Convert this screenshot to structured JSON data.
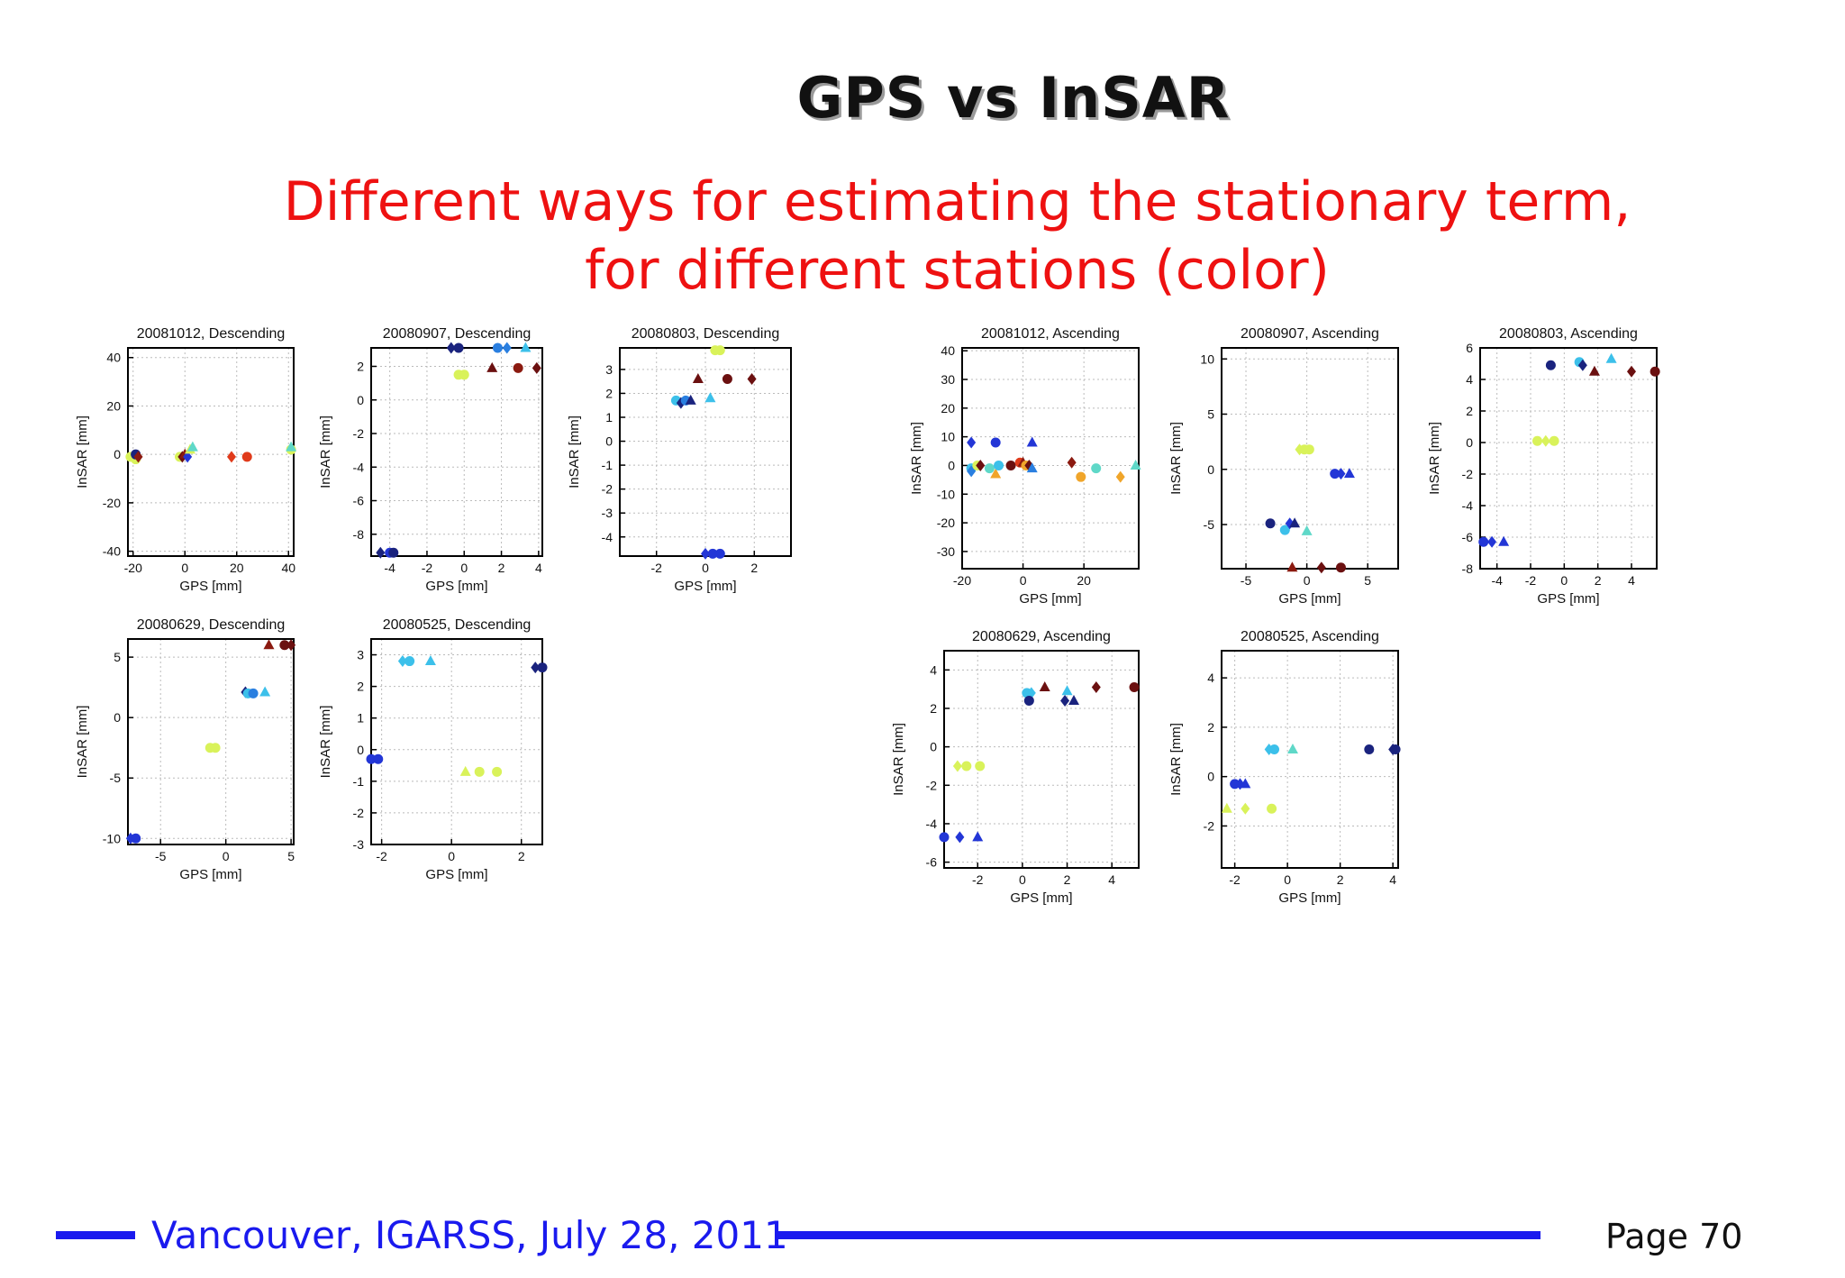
{
  "slide": {
    "title": "GPS vs InSAR",
    "subtitle_line1": "Different ways for estimating the stationary term,",
    "subtitle_line2": "for different stations (color)"
  },
  "footer": {
    "text": "Vancouver, IGARSS, July 28, 2011",
    "page": "Page 70",
    "line_color": "#1a1aee"
  },
  "colors": {
    "title": "#111111",
    "subtitle": "#ee1111",
    "stations": [
      "#1a237e",
      "#2336d6",
      "#2a7fe0",
      "#3cc0ea",
      "#5fd8c8",
      "#d9f25a",
      "#f0a52a",
      "#e03a1a",
      "#8b1a10",
      "#6b1010"
    ]
  },
  "chart_data": [
    {
      "type": "scatter",
      "title": "20081012, Descending",
      "xlabel": "GPS [mm]",
      "ylabel": "InSAR [mm]",
      "xlim": [
        -22,
        42
      ],
      "ylim": [
        -42,
        44
      ],
      "xticks": [
        -20,
        0,
        20,
        40
      ],
      "yticks": [
        -40,
        -20,
        0,
        20,
        40
      ],
      "grid": true,
      "points": [
        {
          "x": -21,
          "y": -1,
          "c": 5,
          "m": "circle"
        },
        {
          "x": -19,
          "y": -2,
          "c": 5,
          "m": "circle"
        },
        {
          "x": -19,
          "y": 0,
          "c": 0,
          "m": "circle"
        },
        {
          "x": -18,
          "y": -1,
          "c": 8,
          "m": "diamond"
        },
        {
          "x": -2,
          "y": -1,
          "c": 5,
          "m": "circle"
        },
        {
          "x": -1,
          "y": -1,
          "c": 9,
          "m": "diamond"
        },
        {
          "x": 0,
          "y": 0,
          "c": 8,
          "m": "triangle"
        },
        {
          "x": 1,
          "y": -1,
          "c": 1,
          "m": "diamond"
        },
        {
          "x": 2,
          "y": 2,
          "c": 5,
          "m": "triangle"
        },
        {
          "x": 3,
          "y": 3,
          "c": 4,
          "m": "triangle"
        },
        {
          "x": 18,
          "y": -1,
          "c": 7,
          "m": "diamond"
        },
        {
          "x": 24,
          "y": -1,
          "c": 7,
          "m": "circle"
        },
        {
          "x": 41,
          "y": 2,
          "c": 5,
          "m": "circle"
        },
        {
          "x": 41,
          "y": 3,
          "c": 4,
          "m": "triangle"
        }
      ]
    },
    {
      "type": "scatter",
      "title": "20080907, Descending",
      "xlabel": "GPS [mm]",
      "ylabel": "InSAR [mm]",
      "xlim": [
        -5,
        4.2
      ],
      "ylim": [
        -9.3,
        3.1
      ],
      "xticks": [
        -4,
        -2,
        0,
        2,
        4
      ],
      "yticks": [
        -8,
        -6,
        -4,
        -2,
        0,
        2
      ],
      "grid": true,
      "points": [
        {
          "x": -4.5,
          "y": -9.1,
          "c": 0,
          "m": "diamond"
        },
        {
          "x": -4.0,
          "y": -9.1,
          "c": 1,
          "m": "circle"
        },
        {
          "x": -3.8,
          "y": -9.1,
          "c": 0,
          "m": "circle"
        },
        {
          "x": -0.7,
          "y": 3.1,
          "c": 0,
          "m": "diamond"
        },
        {
          "x": -0.3,
          "y": 3.1,
          "c": 0,
          "m": "circle"
        },
        {
          "x": 1.8,
          "y": 3.1,
          "c": 2,
          "m": "circle"
        },
        {
          "x": 2.3,
          "y": 3.1,
          "c": 2,
          "m": "diamond"
        },
        {
          "x": 3.3,
          "y": 3.1,
          "c": 3,
          "m": "triangle"
        },
        {
          "x": -0.3,
          "y": 1.5,
          "c": 5,
          "m": "circle"
        },
        {
          "x": 0,
          "y": 1.5,
          "c": 5,
          "m": "circle"
        },
        {
          "x": 1.5,
          "y": 1.9,
          "c": 9,
          "m": "triangle"
        },
        {
          "x": 2.9,
          "y": 1.9,
          "c": 8,
          "m": "circle"
        },
        {
          "x": 3.9,
          "y": 1.9,
          "c": 9,
          "m": "diamond"
        }
      ]
    },
    {
      "type": "scatter",
      "title": "20080803, Descending",
      "xlabel": "GPS [mm]",
      "ylabel": "InSAR [mm]",
      "xlim": [
        -3.5,
        3.5
      ],
      "ylim": [
        -4.8,
        3.9
      ],
      "xticks": [
        -2,
        0,
        2
      ],
      "yticks": [
        -4,
        -3,
        -2,
        -1,
        0,
        1,
        2,
        3
      ],
      "grid": true,
      "points": [
        {
          "x": -1.2,
          "y": 1.7,
          "c": 3,
          "m": "circle"
        },
        {
          "x": -1.0,
          "y": 1.6,
          "c": 0,
          "m": "diamond"
        },
        {
          "x": -0.8,
          "y": 1.7,
          "c": 2,
          "m": "circle"
        },
        {
          "x": -0.6,
          "y": 1.7,
          "c": 0,
          "m": "triangle"
        },
        {
          "x": -0.3,
          "y": 2.6,
          "c": 9,
          "m": "triangle"
        },
        {
          "x": 0.2,
          "y": 1.8,
          "c": 3,
          "m": "triangle"
        },
        {
          "x": 0.4,
          "y": 3.8,
          "c": 5,
          "m": "circle"
        },
        {
          "x": 0.6,
          "y": 3.8,
          "c": 5,
          "m": "circle"
        },
        {
          "x": 0.9,
          "y": 2.6,
          "c": 9,
          "m": "circle"
        },
        {
          "x": 1.9,
          "y": 2.6,
          "c": 9,
          "m": "diamond"
        },
        {
          "x": 0,
          "y": -4.7,
          "c": 1,
          "m": "diamond"
        },
        {
          "x": 0.3,
          "y": -4.7,
          "c": 1,
          "m": "circle"
        },
        {
          "x": 0.6,
          "y": -4.7,
          "c": 1,
          "m": "circle"
        }
      ]
    },
    {
      "type": "scatter",
      "title": "20080629, Descending",
      "xlabel": "GPS [mm]",
      "ylabel": "InSAR [mm]",
      "xlim": [
        -7.5,
        5.2
      ],
      "ylim": [
        -10.5,
        6.5
      ],
      "xticks": [
        -5,
        0,
        5
      ],
      "yticks": [
        -10,
        -5,
        0,
        5
      ],
      "grid": true,
      "points": [
        {
          "x": -7.3,
          "y": -10,
          "c": 1,
          "m": "diamond"
        },
        {
          "x": -6.9,
          "y": -10,
          "c": 1,
          "m": "circle"
        },
        {
          "x": -1.2,
          "y": -2.5,
          "c": 5,
          "m": "circle"
        },
        {
          "x": -0.8,
          "y": -2.5,
          "c": 5,
          "m": "circle"
        },
        {
          "x": 1.5,
          "y": 2.1,
          "c": 0,
          "m": "diamond"
        },
        {
          "x": 1.7,
          "y": 2,
          "c": 3,
          "m": "circle"
        },
        {
          "x": 2.1,
          "y": 2,
          "c": 2,
          "m": "circle"
        },
        {
          "x": 3.0,
          "y": 2.1,
          "c": 3,
          "m": "triangle"
        },
        {
          "x": 3.3,
          "y": 6,
          "c": 8,
          "m": "triangle"
        },
        {
          "x": 4.5,
          "y": 6,
          "c": 9,
          "m": "circle"
        },
        {
          "x": 5.0,
          "y": 6,
          "c": 9,
          "m": "diamond"
        }
      ]
    },
    {
      "type": "scatter",
      "title": "20080525, Descending",
      "xlabel": "GPS [mm]",
      "ylabel": "InSAR [mm]",
      "xlim": [
        -2.3,
        2.6
      ],
      "ylim": [
        -3,
        3.5
      ],
      "xticks": [
        -2,
        0,
        2
      ],
      "yticks": [
        -3,
        -2,
        -1,
        0,
        1,
        2,
        3
      ],
      "grid": true,
      "points": [
        {
          "x": -2.3,
          "y": -0.3,
          "c": 1,
          "m": "circle"
        },
        {
          "x": -2.1,
          "y": -0.3,
          "c": 1,
          "m": "circle"
        },
        {
          "x": -1.4,
          "y": 2.8,
          "c": 3,
          "m": "diamond"
        },
        {
          "x": -1.2,
          "y": 2.8,
          "c": 3,
          "m": "circle"
        },
        {
          "x": -0.6,
          "y": 2.8,
          "c": 3,
          "m": "triangle"
        },
        {
          "x": 0.4,
          "y": -0.7,
          "c": 5,
          "m": "triangle"
        },
        {
          "x": 0.8,
          "y": -0.7,
          "c": 5,
          "m": "circle"
        },
        {
          "x": 1.3,
          "y": -0.7,
          "c": 5,
          "m": "circle"
        },
        {
          "x": 2.4,
          "y": 2.6,
          "c": 0,
          "m": "diamond"
        },
        {
          "x": 2.6,
          "y": 2.6,
          "c": 0,
          "m": "circle"
        }
      ]
    },
    {
      "type": "scatter",
      "title": "20081012, Ascending",
      "xlabel": "GPS [mm]",
      "ylabel": "InSAR [mm]",
      "xlim": [
        -20,
        38
      ],
      "ylim": [
        -36,
        41
      ],
      "xticks": [
        -20,
        0,
        20
      ],
      "yticks": [
        -30,
        -20,
        -10,
        0,
        10,
        20,
        30,
        40
      ],
      "grid": true,
      "points": [
        {
          "x": -17,
          "y": 8,
          "c": 1,
          "m": "diamond"
        },
        {
          "x": -9,
          "y": 8,
          "c": 1,
          "m": "circle"
        },
        {
          "x": 3,
          "y": 8,
          "c": 1,
          "m": "triangle"
        },
        {
          "x": -17,
          "y": -1,
          "c": 3,
          "m": "circle"
        },
        {
          "x": -17,
          "y": -2,
          "c": 2,
          "m": "diamond"
        },
        {
          "x": -15,
          "y": 0,
          "c": 5,
          "m": "circle"
        },
        {
          "x": -14,
          "y": 0,
          "c": 9,
          "m": "diamond"
        },
        {
          "x": -11,
          "y": -1,
          "c": 4,
          "m": "circle"
        },
        {
          "x": -9,
          "y": -3,
          "c": 6,
          "m": "triangle"
        },
        {
          "x": -8,
          "y": 0,
          "c": 3,
          "m": "circle"
        },
        {
          "x": -4,
          "y": 0,
          "c": 9,
          "m": "circle"
        },
        {
          "x": -1,
          "y": 1,
          "c": 7,
          "m": "circle"
        },
        {
          "x": 0,
          "y": 1,
          "c": 8,
          "m": "triangle"
        },
        {
          "x": 1,
          "y": 0,
          "c": 6,
          "m": "circle"
        },
        {
          "x": 2,
          "y": 0,
          "c": 9,
          "m": "diamond"
        },
        {
          "x": 3,
          "y": -1,
          "c": 2,
          "m": "triangle"
        },
        {
          "x": 16,
          "y": 1,
          "c": 8,
          "m": "diamond"
        },
        {
          "x": 19,
          "y": -4,
          "c": 6,
          "m": "circle"
        },
        {
          "x": 24,
          "y": -1,
          "c": 4,
          "m": "circle"
        },
        {
          "x": 32,
          "y": -4,
          "c": 6,
          "m": "diamond"
        },
        {
          "x": 37,
          "y": 0,
          "c": 4,
          "m": "triangle"
        }
      ]
    },
    {
      "type": "scatter",
      "title": "20080907, Ascending",
      "xlabel": "GPS [mm]",
      "ylabel": "InSAR [mm]",
      "xlim": [
        -7,
        7.5
      ],
      "ylim": [
        -9,
        11
      ],
      "xticks": [
        -5,
        0,
        5
      ],
      "yticks": [
        -5,
        0,
        5,
        10
      ],
      "grid": true,
      "points": [
        {
          "x": -3,
          "y": -4.9,
          "c": 0,
          "m": "circle"
        },
        {
          "x": -1.8,
          "y": -5.5,
          "c": 3,
          "m": "circle"
        },
        {
          "x": -1.4,
          "y": -4.9,
          "c": 1,
          "m": "diamond"
        },
        {
          "x": -1.0,
          "y": -4.9,
          "c": 0,
          "m": "triangle"
        },
        {
          "x": 0,
          "y": -5.6,
          "c": 4,
          "m": "triangle"
        },
        {
          "x": -0.6,
          "y": 1.8,
          "c": 5,
          "m": "diamond"
        },
        {
          "x": -0.2,
          "y": 1.8,
          "c": 5,
          "m": "circle"
        },
        {
          "x": 0.2,
          "y": 1.8,
          "c": 5,
          "m": "circle"
        },
        {
          "x": 2.3,
          "y": -0.4,
          "c": 1,
          "m": "circle"
        },
        {
          "x": 2.8,
          "y": -0.4,
          "c": 1,
          "m": "diamond"
        },
        {
          "x": 3.5,
          "y": -0.4,
          "c": 1,
          "m": "triangle"
        },
        {
          "x": -1.2,
          "y": -8.9,
          "c": 8,
          "m": "triangle"
        },
        {
          "x": 1.2,
          "y": -8.9,
          "c": 9,
          "m": "diamond"
        },
        {
          "x": 2.8,
          "y": -8.9,
          "c": 9,
          "m": "circle"
        }
      ]
    },
    {
      "type": "scatter",
      "title": "20080803, Ascending",
      "xlabel": "GPS [mm]",
      "ylabel": "InSAR [mm]",
      "xlim": [
        -5,
        5.5
      ],
      "ylim": [
        -8,
        6
      ],
      "xticks": [
        -4,
        -2,
        0,
        2,
        4
      ],
      "yticks": [
        -8,
        -6,
        -4,
        -2,
        0,
        2,
        4,
        6
      ],
      "grid": true,
      "points": [
        {
          "x": -4.8,
          "y": -6.3,
          "c": 1,
          "m": "circle"
        },
        {
          "x": -4.3,
          "y": -6.3,
          "c": 1,
          "m": "diamond"
        },
        {
          "x": -3.6,
          "y": -6.3,
          "c": 1,
          "m": "triangle"
        },
        {
          "x": -1.6,
          "y": 0.1,
          "c": 5,
          "m": "circle"
        },
        {
          "x": -1.1,
          "y": 0.1,
          "c": 5,
          "m": "diamond"
        },
        {
          "x": -0.6,
          "y": 0.1,
          "c": 5,
          "m": "circle"
        },
        {
          "x": -0.8,
          "y": 4.9,
          "c": 0,
          "m": "circle"
        },
        {
          "x": 0.9,
          "y": 5.1,
          "c": 3,
          "m": "circle"
        },
        {
          "x": 1.1,
          "y": 4.9,
          "c": 0,
          "m": "diamond"
        },
        {
          "x": 1.8,
          "y": 4.5,
          "c": 9,
          "m": "triangle"
        },
        {
          "x": 2.8,
          "y": 5.3,
          "c": 3,
          "m": "triangle"
        },
        {
          "x": 4.0,
          "y": 4.5,
          "c": 9,
          "m": "diamond"
        },
        {
          "x": 5.4,
          "y": 4.5,
          "c": 9,
          "m": "circle"
        }
      ]
    },
    {
      "type": "scatter",
      "title": "20080629, Ascending",
      "xlabel": "GPS [mm]",
      "ylabel": "InSAR [mm]",
      "xlim": [
        -3.5,
        5.2
      ],
      "ylim": [
        -6.3,
        5
      ],
      "xticks": [
        -2,
        0,
        2,
        4
      ],
      "yticks": [
        -6,
        -4,
        -2,
        0,
        2,
        4
      ],
      "grid": true,
      "points": [
        {
          "x": -3.5,
          "y": -4.7,
          "c": 1,
          "m": "circle"
        },
        {
          "x": -2.8,
          "y": -4.7,
          "c": 1,
          "m": "diamond"
        },
        {
          "x": -2.0,
          "y": -4.7,
          "c": 1,
          "m": "triangle"
        },
        {
          "x": -2.9,
          "y": -1,
          "c": 5,
          "m": "diamond"
        },
        {
          "x": -2.5,
          "y": -1,
          "c": 5,
          "m": "circle"
        },
        {
          "x": -1.9,
          "y": -1,
          "c": 5,
          "m": "circle"
        },
        {
          "x": 0.2,
          "y": 2.8,
          "c": 3,
          "m": "circle"
        },
        {
          "x": 0.4,
          "y": 2.8,
          "c": 3,
          "m": "diamond"
        },
        {
          "x": 0.3,
          "y": 2.4,
          "c": 0,
          "m": "circle"
        },
        {
          "x": 1.0,
          "y": 3.1,
          "c": 9,
          "m": "triangle"
        },
        {
          "x": 1.9,
          "y": 2.4,
          "c": 0,
          "m": "diamond"
        },
        {
          "x": 2.0,
          "y": 2.9,
          "c": 3,
          "m": "triangle"
        },
        {
          "x": 2.3,
          "y": 2.4,
          "c": 0,
          "m": "triangle"
        },
        {
          "x": 3.3,
          "y": 3.1,
          "c": 9,
          "m": "diamond"
        },
        {
          "x": 5.0,
          "y": 3.1,
          "c": 9,
          "m": "circle"
        }
      ]
    },
    {
      "type": "scatter",
      "title": "20080525, Ascending",
      "xlabel": "GPS [mm]",
      "ylabel": "InSAR [mm]",
      "xlim": [
        -2.5,
        4.2
      ],
      "ylim": [
        -3.7,
        5.1
      ],
      "xticks": [
        -2,
        0,
        2,
        4
      ],
      "yticks": [
        -2,
        0,
        2,
        4
      ],
      "grid": true,
      "points": [
        {
          "x": -2.3,
          "y": -1.3,
          "c": 5,
          "m": "triangle"
        },
        {
          "x": -1.6,
          "y": -1.3,
          "c": 5,
          "m": "diamond"
        },
        {
          "x": -0.6,
          "y": -1.3,
          "c": 5,
          "m": "circle"
        },
        {
          "x": -2.0,
          "y": -0.3,
          "c": 1,
          "m": "circle"
        },
        {
          "x": -1.8,
          "y": -0.3,
          "c": 1,
          "m": "diamond"
        },
        {
          "x": -1.6,
          "y": -0.3,
          "c": 1,
          "m": "triangle"
        },
        {
          "x": -0.7,
          "y": 1.1,
          "c": 3,
          "m": "diamond"
        },
        {
          "x": -0.5,
          "y": 1.1,
          "c": 3,
          "m": "circle"
        },
        {
          "x": 0.2,
          "y": 1.1,
          "c": 4,
          "m": "triangle"
        },
        {
          "x": 3.1,
          "y": 1.1,
          "c": 0,
          "m": "circle"
        },
        {
          "x": 4.0,
          "y": 1.1,
          "c": 0,
          "m": "diamond"
        },
        {
          "x": 4.1,
          "y": 1.1,
          "c": 0,
          "m": "circle"
        }
      ]
    }
  ]
}
